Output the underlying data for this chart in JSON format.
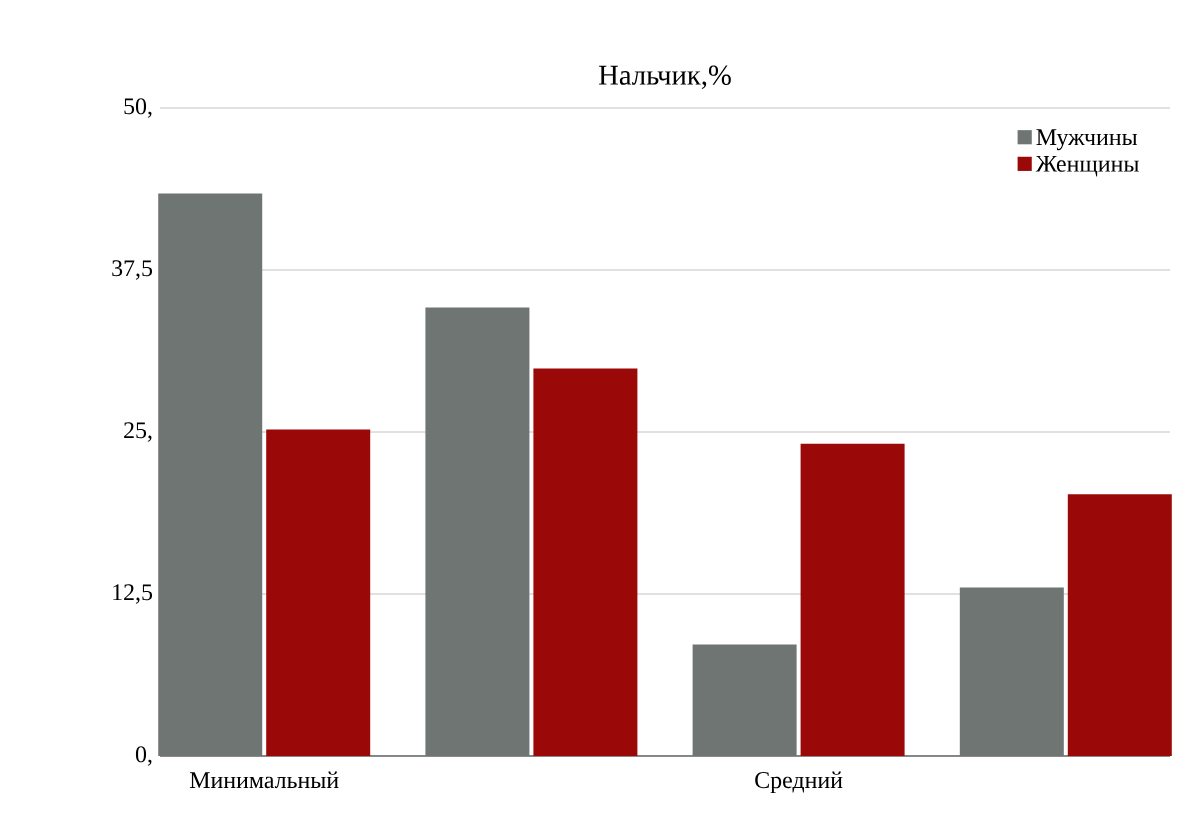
{
  "chart_data": {
    "type": "bar",
    "title": "Нальчик,%",
    "categories": [
      "Минимальный",
      null,
      "Средний",
      null
    ],
    "series": [
      {
        "name": "Мужчины",
        "color": "#6f7572",
        "values": [
          43.4,
          34.6,
          8.6,
          13.0
        ]
      },
      {
        "name": "Женщины",
        "color": "#9b0808",
        "values": [
          25.2,
          29.9,
          24.1,
          20.2
        ]
      }
    ],
    "ylim": [
      0,
      50
    ],
    "yticks": [
      {
        "value": 0,
        "label": "0,"
      },
      {
        "value": 12.5,
        "label": "12,5"
      },
      {
        "value": 25,
        "label": "25,"
      },
      {
        "value": 37.5,
        "label": "37,5"
      },
      {
        "value": 50,
        "label": "50,"
      }
    ],
    "grid": "y",
    "legend": "top right"
  }
}
